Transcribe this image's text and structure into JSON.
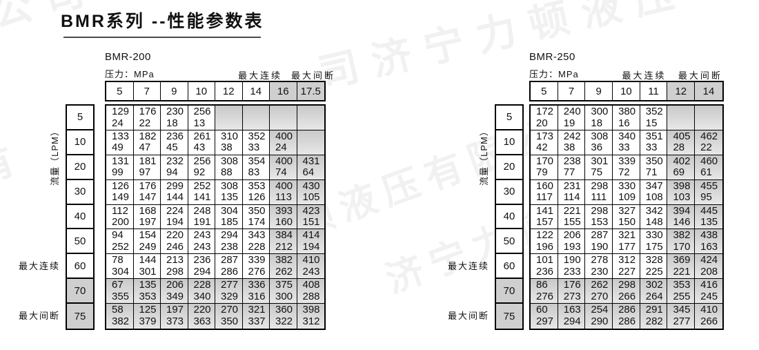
{
  "title": "BMR系列 --性能参数表",
  "watermark_text": "济宁力顿液压有限公司",
  "watermark_fragments": [
    "司济宁力顿液压",
    "顿液压有限公司",
    "济宁力顿液",
    "限公司",
    "压有"
  ],
  "labels": {
    "pressure_unit": "压力：MPa",
    "max_continuous": "最大连续",
    "max_intermittent": "最大间断",
    "flow_unit": "流量（LPM）"
  },
  "colors": {
    "border": "#000000",
    "shaded_header": "#cfcfcf",
    "shaded_cell_top": "#c9c9c9",
    "shaded_cell_bottom": "#e7e7e7",
    "title_underline": "#4a4a4a",
    "watermark": "rgba(0,0,0,0.05)"
  },
  "tables": [
    {
      "name": "BMR-200",
      "pressure_cols": [
        "5",
        "7",
        "9",
        "10",
        "12",
        "14",
        "16",
        "17.5"
      ],
      "shaded_last_cols": 2,
      "flow_rows": [
        "5",
        "10",
        "20",
        "30",
        "40",
        "50",
        "60",
        "70",
        "75"
      ],
      "shaded_last_rows": 2,
      "max_continuous_row": "60",
      "max_intermittent_row": "75",
      "cells": [
        [
          [
            "129",
            "24"
          ],
          [
            "176",
            "22"
          ],
          [
            "230",
            "18"
          ],
          [
            "256",
            "13"
          ],
          null,
          null,
          null,
          null
        ],
        [
          [
            "133",
            "49"
          ],
          [
            "182",
            "47"
          ],
          [
            "236",
            "45"
          ],
          [
            "261",
            "43"
          ],
          [
            "310",
            "38"
          ],
          [
            "352",
            "33"
          ],
          [
            "400",
            "24"
          ],
          null
        ],
        [
          [
            "131",
            "99"
          ],
          [
            "181",
            "97"
          ],
          [
            "232",
            "94"
          ],
          [
            "256",
            "92"
          ],
          [
            "308",
            "88"
          ],
          [
            "354",
            "83"
          ],
          [
            "400",
            "74"
          ],
          [
            "431",
            "64"
          ]
        ],
        [
          [
            "126",
            "149"
          ],
          [
            "176",
            "147"
          ],
          [
            "299",
            "144"
          ],
          [
            "252",
            "141"
          ],
          [
            "308",
            "135"
          ],
          [
            "353",
            "126"
          ],
          [
            "400",
            "113"
          ],
          [
            "430",
            "105"
          ]
        ],
        [
          [
            "112",
            "200"
          ],
          [
            "168",
            "197"
          ],
          [
            "224",
            "194"
          ],
          [
            "248",
            "191"
          ],
          [
            "304",
            "185"
          ],
          [
            "350",
            "174"
          ],
          [
            "393",
            "160"
          ],
          [
            "423",
            "151"
          ]
        ],
        [
          [
            "94",
            "252"
          ],
          [
            "154",
            "249"
          ],
          [
            "220",
            "246"
          ],
          [
            "243",
            "243"
          ],
          [
            "294",
            "238"
          ],
          [
            "343",
            "228"
          ],
          [
            "384",
            "212"
          ],
          [
            "414",
            "194"
          ]
        ],
        [
          [
            "78",
            "304"
          ],
          [
            "144",
            "301"
          ],
          [
            "213",
            "298"
          ],
          [
            "236",
            "294"
          ],
          [
            "287",
            "286"
          ],
          [
            "339",
            "276"
          ],
          [
            "382",
            "262"
          ],
          [
            "410",
            "243"
          ]
        ],
        [
          [
            "67",
            "355"
          ],
          [
            "135",
            "353"
          ],
          [
            "206",
            "349"
          ],
          [
            "228",
            "340"
          ],
          [
            "277",
            "329"
          ],
          [
            "336",
            "316"
          ],
          [
            "375",
            "300"
          ],
          [
            "408",
            "288"
          ]
        ],
        [
          [
            "58",
            "382"
          ],
          [
            "125",
            "379"
          ],
          [
            "197",
            "373"
          ],
          [
            "220",
            "363"
          ],
          [
            "270",
            "350"
          ],
          [
            "321",
            "337"
          ],
          [
            "360",
            "322"
          ],
          [
            "398",
            "312"
          ]
        ]
      ]
    },
    {
      "name": "BMR-250",
      "pressure_cols": [
        "5",
        "7",
        "9",
        "10",
        "11",
        "12",
        "14"
      ],
      "shaded_last_cols": 2,
      "flow_rows": [
        "5",
        "10",
        "20",
        "30",
        "40",
        "50",
        "60",
        "70",
        "75"
      ],
      "shaded_last_rows": 2,
      "max_continuous_row": "60",
      "max_intermittent_row": "75",
      "cells": [
        [
          [
            "172",
            "20"
          ],
          [
            "240",
            "19"
          ],
          [
            "300",
            "18"
          ],
          [
            "380",
            "16"
          ],
          [
            "352",
            "15"
          ],
          null,
          null
        ],
        [
          [
            "173",
            "42"
          ],
          [
            "242",
            "38"
          ],
          [
            "308",
            "36"
          ],
          [
            "340",
            "33"
          ],
          [
            "351",
            "33"
          ],
          [
            "405",
            "28"
          ],
          [
            "462",
            "22"
          ]
        ],
        [
          [
            "170",
            "79"
          ],
          [
            "238",
            "77"
          ],
          [
            "301",
            "75"
          ],
          [
            "339",
            "72"
          ],
          [
            "350",
            "71"
          ],
          [
            "402",
            "69"
          ],
          [
            "460",
            "61"
          ]
        ],
        [
          [
            "160",
            "117"
          ],
          [
            "231",
            "114"
          ],
          [
            "298",
            "111"
          ],
          [
            "330",
            "109"
          ],
          [
            "347",
            "108"
          ],
          [
            "398",
            "103"
          ],
          [
            "455",
            "95"
          ]
        ],
        [
          [
            "141",
            "157"
          ],
          [
            "221",
            "155"
          ],
          [
            "298",
            "153"
          ],
          [
            "327",
            "150"
          ],
          [
            "342",
            "148"
          ],
          [
            "394",
            "146"
          ],
          [
            "445",
            "135"
          ]
        ],
        [
          [
            "122",
            "196"
          ],
          [
            "206",
            "193"
          ],
          [
            "287",
            "190"
          ],
          [
            "321",
            "177"
          ],
          [
            "330",
            "175"
          ],
          [
            "382",
            "170"
          ],
          [
            "438",
            "163"
          ]
        ],
        [
          [
            "101",
            "236"
          ],
          [
            "190",
            "233"
          ],
          [
            "278",
            "230"
          ],
          [
            "312",
            "227"
          ],
          [
            "328",
            "225"
          ],
          [
            "369",
            "221"
          ],
          [
            "424",
            "208"
          ]
        ],
        [
          [
            "86",
            "276"
          ],
          [
            "176",
            "273"
          ],
          [
            "262",
            "270"
          ],
          [
            "298",
            "266"
          ],
          [
            "302",
            "264"
          ],
          [
            "353",
            "255"
          ],
          [
            "416",
            "245"
          ]
        ],
        [
          [
            "60",
            "297"
          ],
          [
            "163",
            "294"
          ],
          [
            "254",
            "290"
          ],
          [
            "286",
            "286"
          ],
          [
            "291",
            "282"
          ],
          [
            "345",
            "277"
          ],
          [
            "410",
            "266"
          ]
        ]
      ]
    }
  ]
}
